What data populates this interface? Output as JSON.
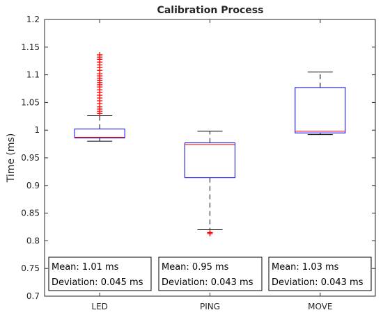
{
  "chart_data": {
    "type": "boxplot",
    "title": "Calibration Process",
    "xlabel": "",
    "ylabel": "Time (ms)",
    "ylim": [
      0.7,
      1.2
    ],
    "yticks": [
      0.7,
      0.75,
      0.8,
      0.85,
      0.9,
      0.95,
      1,
      1.05,
      1.1,
      1.15,
      1.2
    ],
    "ytick_labels": [
      "0.7",
      "0.75",
      "0.8",
      "0.85",
      "0.9",
      "0.95",
      "1",
      "1.05",
      "1.1",
      "1.15",
      "1.2"
    ],
    "categories": [
      "LED",
      "PING",
      "MOVE"
    ],
    "box_color": "#0000ff",
    "median_color": "#ff0000",
    "outlier_color": "#ff0000",
    "grid": false,
    "boxes": [
      {
        "category": "LED",
        "whisker_low": 0.98,
        "q1": 0.986,
        "median": 0.987,
        "q3": 1.002,
        "whisker_high": 1.026,
        "outliers": [
          1.03,
          1.034,
          1.038,
          1.042,
          1.048,
          1.053,
          1.058,
          1.063,
          1.068,
          1.073,
          1.078,
          1.082,
          1.086,
          1.09,
          1.094,
          1.098,
          1.102,
          1.108,
          1.113,
          1.118,
          1.123,
          1.128,
          1.132,
          1.136
        ]
      },
      {
        "category": "PING",
        "whisker_low": 0.82,
        "q1": 0.914,
        "median": 0.974,
        "q3": 0.977,
        "whisker_high": 0.998,
        "outliers": [
          0.813,
          0.815
        ]
      },
      {
        "category": "MOVE",
        "whisker_low": 0.992,
        "q1": 0.995,
        "median": 0.998,
        "q3": 1.077,
        "whisker_high": 1.105,
        "outliers": []
      }
    ],
    "annotations": [
      {
        "category": "LED",
        "mean": "Mean: 1.01 ms",
        "deviation": "Deviation: 0.045 ms"
      },
      {
        "category": "PING",
        "mean": "Mean: 0.95 ms",
        "deviation": "Deviation: 0.043 ms"
      },
      {
        "category": "MOVE",
        "mean": "Mean: 1.03 ms",
        "deviation": "Deviation: 0.043 ms"
      }
    ]
  }
}
